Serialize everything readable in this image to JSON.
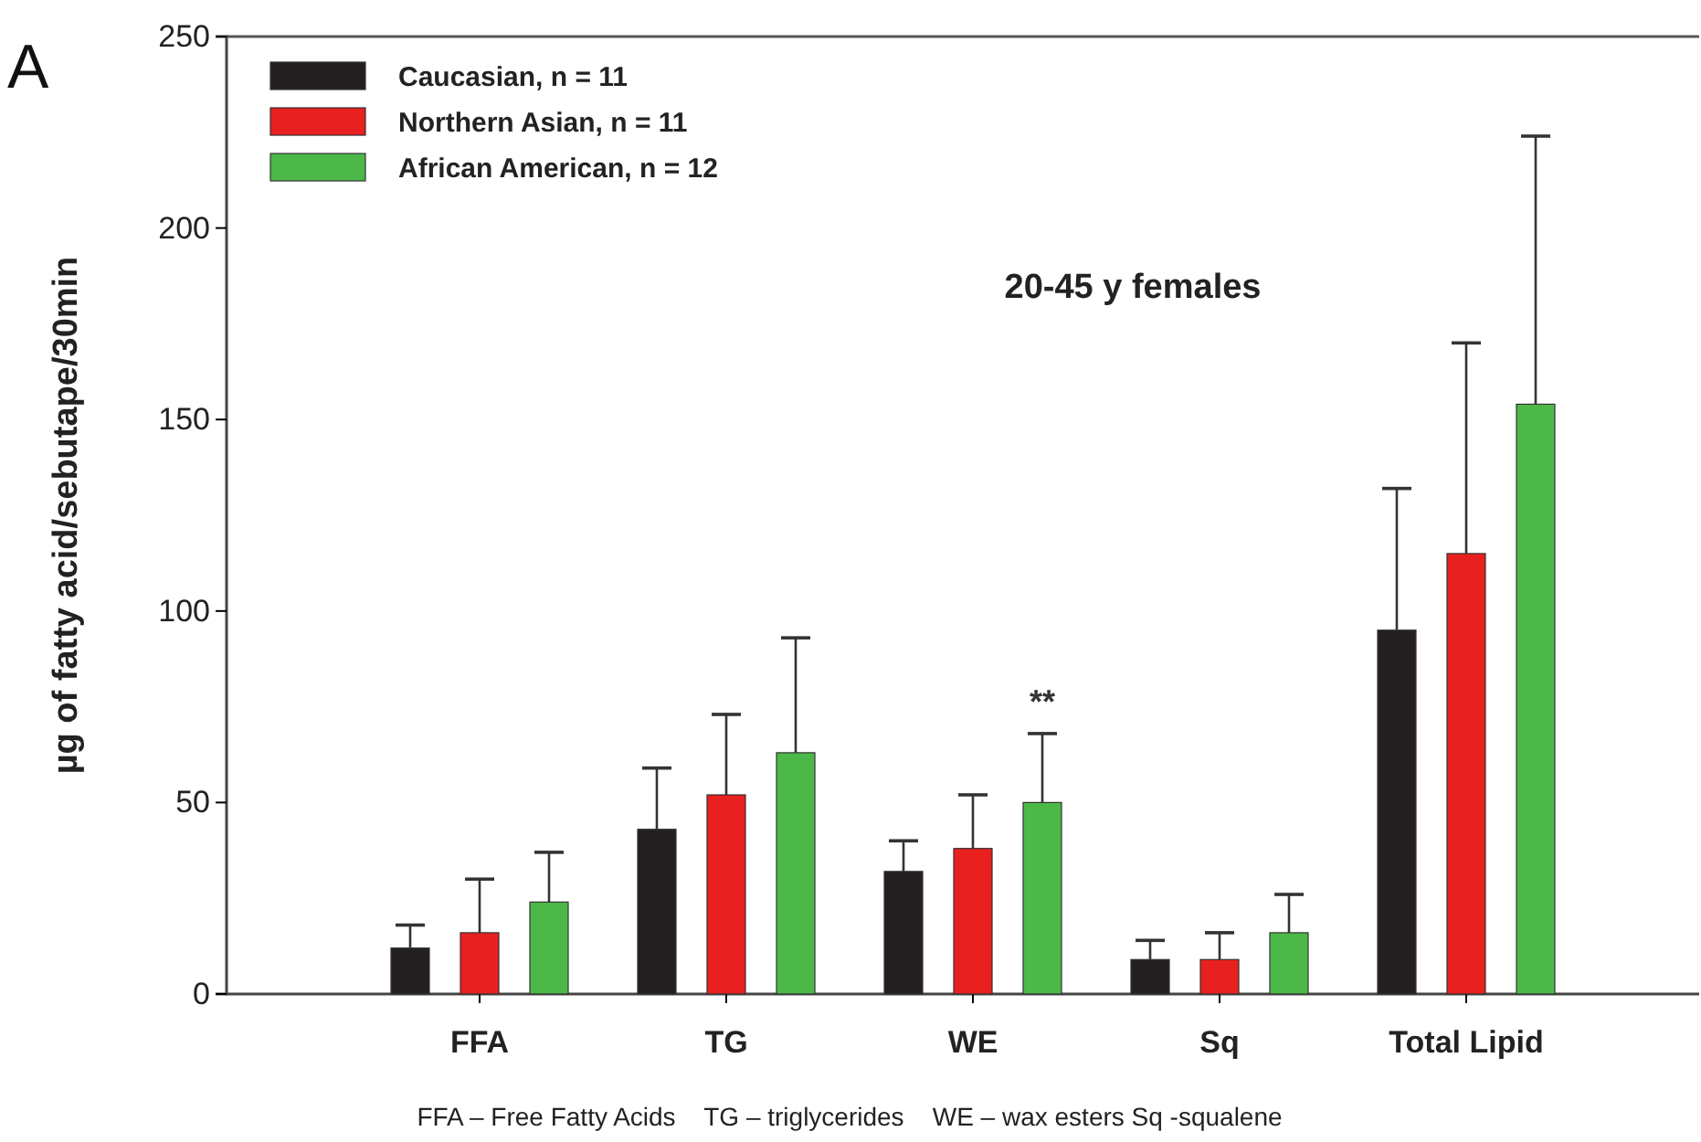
{
  "chart_data": {
    "type": "bar",
    "title": "20-45 y females",
    "ylabel": "µg of fatty acid/sebutape/30min",
    "categories": [
      "FFA",
      "TG",
      "WE",
      "Sq",
      "Total Lipid"
    ],
    "series": [
      {
        "name": "Caucasian, n = 11",
        "color": "#231f20",
        "values": [
          12,
          43,
          32,
          9,
          95
        ],
        "errors": [
          [
            12,
            18
          ],
          [
            43,
            59
          ],
          [
            32,
            40
          ],
          [
            9,
            14
          ],
          [
            95,
            132
          ]
        ]
      },
      {
        "name": "Northern Asian, n = 11",
        "color": "#e8201f",
        "values": [
          16,
          52,
          38,
          9,
          115
        ],
        "errors": [
          [
            16,
            30
          ],
          [
            52,
            73
          ],
          [
            38,
            52
          ],
          [
            9,
            16
          ],
          [
            115,
            170
          ]
        ]
      },
      {
        "name": "African American, n = 12",
        "color": "#4cb848",
        "values": [
          24,
          63,
          50,
          16,
          154
        ],
        "errors": [
          [
            24,
            37
          ],
          [
            63,
            93
          ],
          [
            50,
            68
          ],
          [
            16,
            26
          ],
          [
            154,
            224
          ]
        ]
      }
    ],
    "ylim": [
      0,
      250
    ],
    "yticks": [
      0,
      50,
      100,
      150,
      200,
      250
    ],
    "grid": false,
    "legend": "top left",
    "annotations": [
      "A",
      "**",
      "FFA – Free Fatty Acids    TG – triglycerides    WE – wax esters Sq -squalene"
    ]
  }
}
